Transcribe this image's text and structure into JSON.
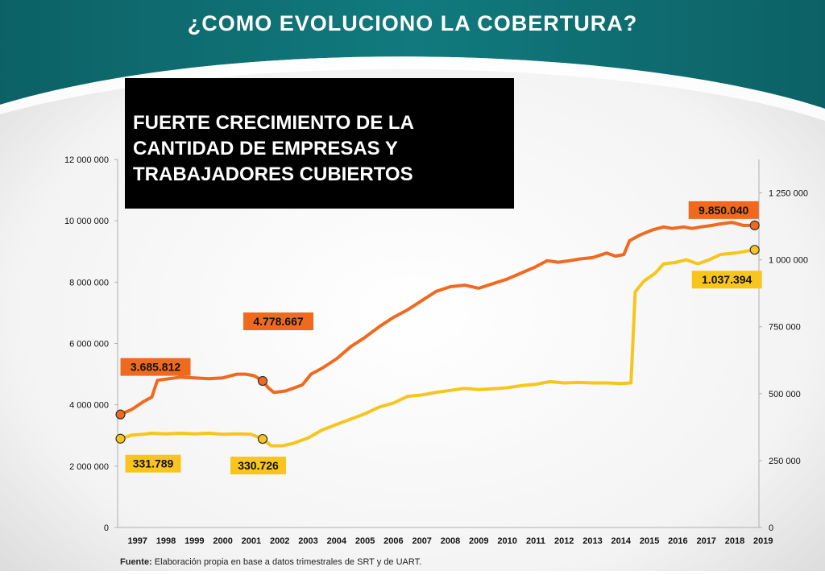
{
  "title": "¿COMO EVOLUCIONO LA COBERTURA?",
  "callout": "FUERTE CRECIMIENTO DE LA\nCANTIDAD DE EMPRESAS Y\nTRABAJADORES CUBIERTOS",
  "source": {
    "label": "Fuente:",
    "text": " Elaboración propia en base a datos trimestrales de SRT y de UART."
  },
  "colors": {
    "header_teal": "#0e6e73",
    "workers": "#ef6a1f",
    "companies": "#f8c51c"
  },
  "chart_data": {
    "type": "line",
    "x_ticks": [
      "1997",
      "1998",
      "1999",
      "2000",
      "2001",
      "2002",
      "2003",
      "2004",
      "2005",
      "2006",
      "2007",
      "2008",
      "2009",
      "2010",
      "2011",
      "2012",
      "2013",
      "2014",
      "2015",
      "2016",
      "2017",
      "2018",
      "2019"
    ],
    "y_left": {
      "min": 0,
      "max": 12000000,
      "ticks": [
        "0",
        "2 000 000",
        "4 000 000",
        "6 000 000",
        "8 000 000",
        "10 000 000",
        "12 000 000"
      ]
    },
    "y_right": {
      "min": 0,
      "max": 1375000,
      "ticks": [
        "0",
        "250 000",
        "500 000",
        "750 000",
        "1 000 000",
        "1 250 000"
      ]
    },
    "series": [
      {
        "axis": "left",
        "color": "#ef6a1f",
        "points": [
          [
            1996.9,
            3685812
          ],
          [
            1997.3,
            3850000
          ],
          [
            1997.7,
            4100000
          ],
          [
            1998.0,
            4250000
          ],
          [
            1998.2,
            4800000
          ],
          [
            1998.6,
            4850000
          ],
          [
            1999.0,
            4900000
          ],
          [
            1999.5,
            4880000
          ],
          [
            2000.0,
            4850000
          ],
          [
            2000.5,
            4880000
          ],
          [
            2001.0,
            5000000
          ],
          [
            2001.3,
            5000000
          ],
          [
            2001.6,
            4950000
          ],
          [
            2001.9,
            4778667
          ],
          [
            2002.1,
            4550000
          ],
          [
            2002.3,
            4400000
          ],
          [
            2002.7,
            4450000
          ],
          [
            2003.0,
            4550000
          ],
          [
            2003.3,
            4650000
          ],
          [
            2003.6,
            5000000
          ],
          [
            2004.0,
            5200000
          ],
          [
            2004.5,
            5500000
          ],
          [
            2005.0,
            5900000
          ],
          [
            2005.5,
            6200000
          ],
          [
            2006.0,
            6550000
          ],
          [
            2006.5,
            6850000
          ],
          [
            2007.0,
            7100000
          ],
          [
            2007.5,
            7400000
          ],
          [
            2008.0,
            7700000
          ],
          [
            2008.5,
            7850000
          ],
          [
            2009.0,
            7900000
          ],
          [
            2009.5,
            7800000
          ],
          [
            2010.0,
            7950000
          ],
          [
            2010.5,
            8100000
          ],
          [
            2011.0,
            8300000
          ],
          [
            2011.5,
            8500000
          ],
          [
            2011.9,
            8700000
          ],
          [
            2012.3,
            8650000
          ],
          [
            2012.7,
            8700000
          ],
          [
            2013.0,
            8750000
          ],
          [
            2013.5,
            8800000
          ],
          [
            2014.0,
            8950000
          ],
          [
            2014.3,
            8850000
          ],
          [
            2014.6,
            8900000
          ],
          [
            2014.8,
            9350000
          ],
          [
            2015.2,
            9550000
          ],
          [
            2015.6,
            9700000
          ],
          [
            2016.0,
            9800000
          ],
          [
            2016.3,
            9750000
          ],
          [
            2016.7,
            9800000
          ],
          [
            2017.0,
            9750000
          ],
          [
            2017.3,
            9800000
          ],
          [
            2017.7,
            9850000
          ],
          [
            2018.0,
            9900000
          ],
          [
            2018.4,
            9950000
          ],
          [
            2018.8,
            9850000
          ],
          [
            2019.2,
            9850040
          ]
        ],
        "labels": [
          {
            "text": "3.685.812",
            "at_index": 0
          },
          {
            "text": "4.778.667",
            "at_index": 13
          },
          {
            "text": "9.850.040",
            "at_index": 56
          }
        ]
      },
      {
        "axis": "right",
        "color": "#f8c51c",
        "points": [
          [
            1996.9,
            331789
          ],
          [
            1997.3,
            345000
          ],
          [
            1997.7,
            348000
          ],
          [
            1998.0,
            352000
          ],
          [
            1998.5,
            350000
          ],
          [
            1999.0,
            352000
          ],
          [
            1999.5,
            350000
          ],
          [
            2000.0,
            352000
          ],
          [
            2000.5,
            348000
          ],
          [
            2001.0,
            350000
          ],
          [
            2001.5,
            348000
          ],
          [
            2001.9,
            330726
          ],
          [
            2002.2,
            305000
          ],
          [
            2002.6,
            305000
          ],
          [
            2003.0,
            315000
          ],
          [
            2003.5,
            335000
          ],
          [
            2004.0,
            365000
          ],
          [
            2004.5,
            385000
          ],
          [
            2005.0,
            405000
          ],
          [
            2005.5,
            425000
          ],
          [
            2006.0,
            450000
          ],
          [
            2006.5,
            465000
          ],
          [
            2007.0,
            490000
          ],
          [
            2007.5,
            495000
          ],
          [
            2008.0,
            505000
          ],
          [
            2008.5,
            512000
          ],
          [
            2009.0,
            520000
          ],
          [
            2009.5,
            515000
          ],
          [
            2010.0,
            518000
          ],
          [
            2010.5,
            522000
          ],
          [
            2011.0,
            530000
          ],
          [
            2011.5,
            535000
          ],
          [
            2012.0,
            545000
          ],
          [
            2012.5,
            540000
          ],
          [
            2013.0,
            542000
          ],
          [
            2013.5,
            540000
          ],
          [
            2014.0,
            540000
          ],
          [
            2014.5,
            538000
          ],
          [
            2014.85,
            540000
          ],
          [
            2015.0,
            880000
          ],
          [
            2015.3,
            920000
          ],
          [
            2015.7,
            950000
          ],
          [
            2016.0,
            985000
          ],
          [
            2016.4,
            990000
          ],
          [
            2016.8,
            1000000
          ],
          [
            2017.2,
            985000
          ],
          [
            2017.6,
            1000000
          ],
          [
            2018.0,
            1020000
          ],
          [
            2018.5,
            1025000
          ],
          [
            2019.2,
            1037394
          ]
        ],
        "labels": [
          {
            "text": "331.789",
            "at_index": 0
          },
          {
            "text": "330.726",
            "at_index": 11
          },
          {
            "text": "1.037.394",
            "at_index": 49
          }
        ]
      }
    ],
    "x_range": [
      1996.8,
      2019.35
    ],
    "grid": false
  }
}
